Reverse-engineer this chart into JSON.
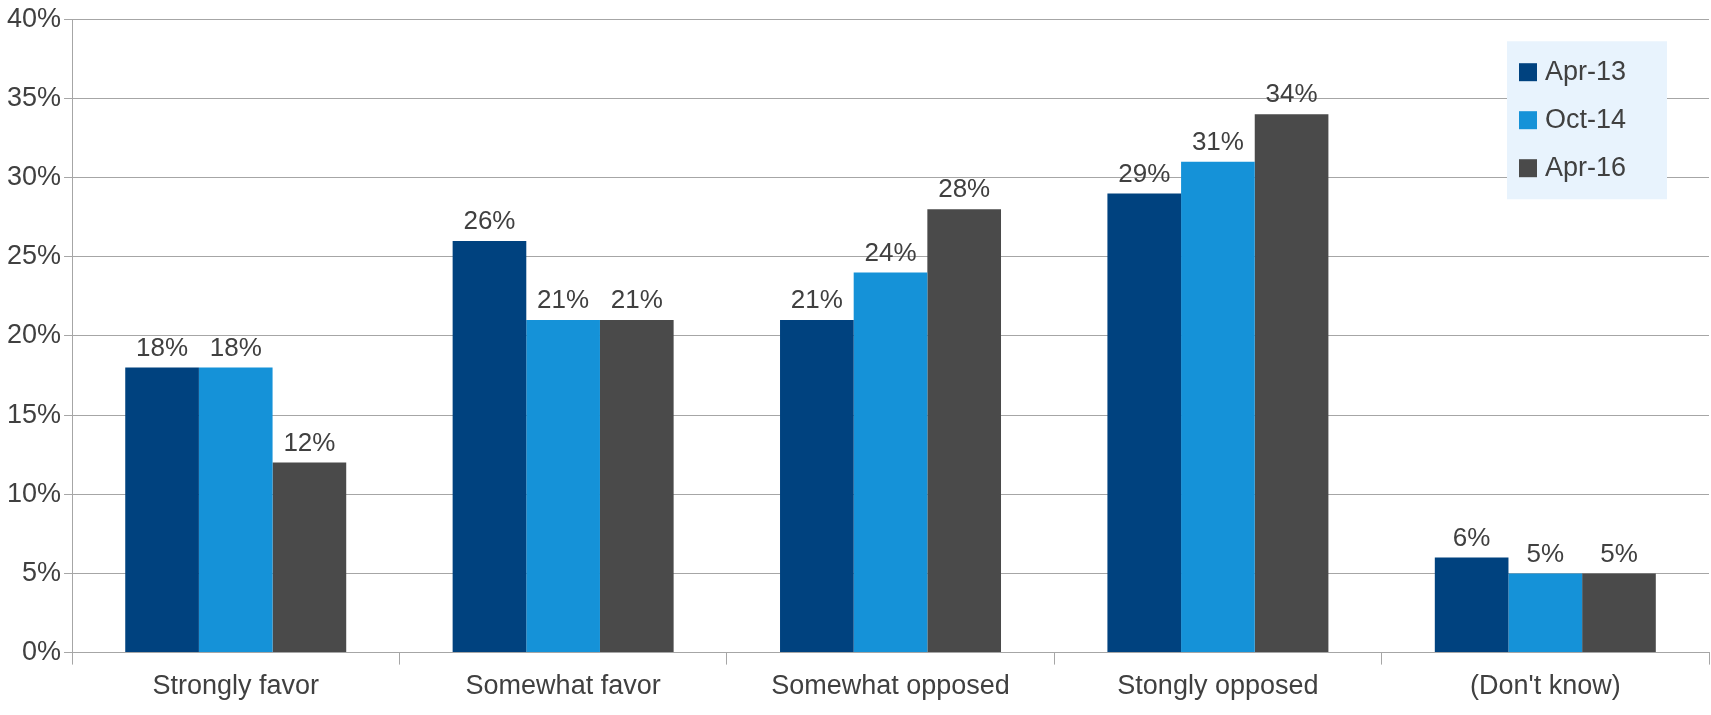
{
  "chart_data": {
    "type": "bar",
    "categories": [
      "Strongly favor",
      "Somewhat favor",
      "Somewhat opposed",
      "Stongly opposed",
      "(Don't know)"
    ],
    "series": [
      {
        "name": "Apr-13",
        "color": "#00427f",
        "values": [
          18,
          26,
          21,
          29,
          6
        ]
      },
      {
        "name": "Oct-14",
        "color": "#1592d8",
        "values": [
          18,
          21,
          24,
          31,
          5
        ]
      },
      {
        "name": "Apr-16",
        "color": "#4a4a4a",
        "values": [
          12,
          21,
          28,
          34,
          5
        ]
      }
    ],
    "ylim": [
      0,
      40
    ],
    "yticks": [
      {
        "value": 0,
        "label": "0%"
      },
      {
        "value": 5,
        "label": "5%"
      },
      {
        "value": 10,
        "label": "10%"
      },
      {
        "value": 15,
        "label": "15%"
      },
      {
        "value": 20,
        "label": "20%"
      },
      {
        "value": 25,
        "label": "25%"
      },
      {
        "value": 30,
        "label": "30%"
      },
      {
        "value": 35,
        "label": "35%"
      },
      {
        "value": 40,
        "label": "40%"
      }
    ],
    "value_labels": [
      [
        "18%",
        "26%",
        "21%",
        "29%",
        "6%"
      ],
      [
        "18%",
        "21%",
        "24%",
        "31%",
        "5%"
      ],
      [
        "12%",
        "21%",
        "28%",
        "34%",
        "5%"
      ]
    ],
    "grid": "y",
    "legend": "top right"
  }
}
